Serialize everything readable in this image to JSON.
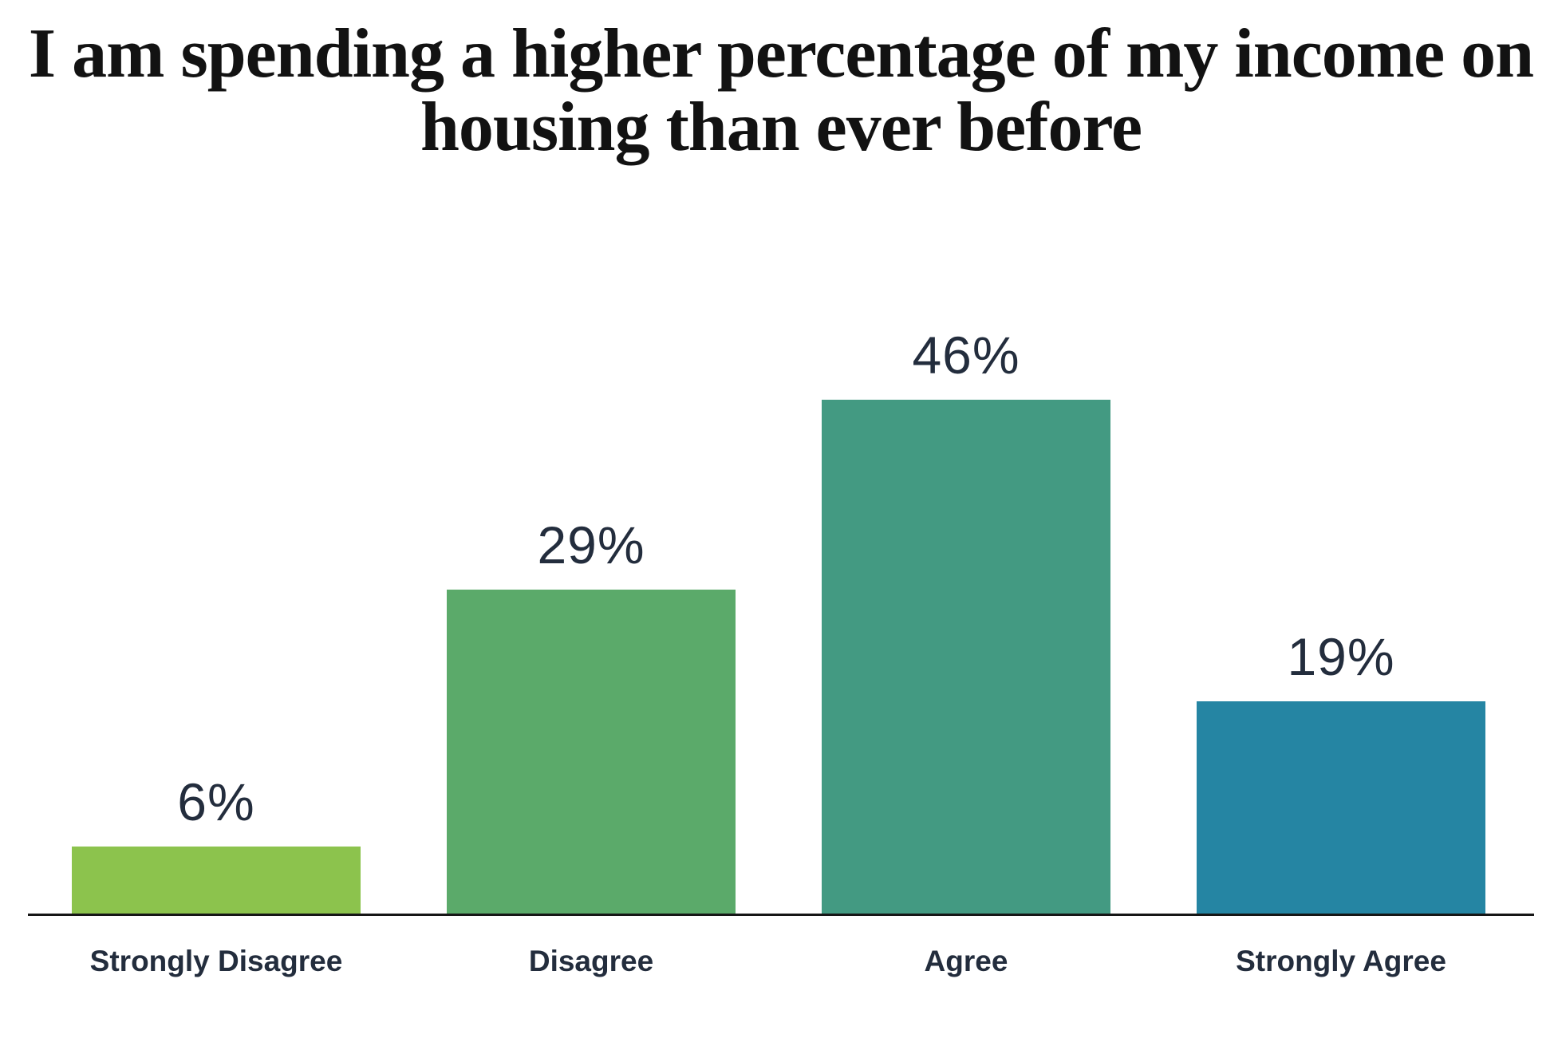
{
  "chart_data": {
    "type": "bar",
    "title": "I am spending a higher percentage of my income on housing than ever before",
    "categories": [
      "Strongly Disagree",
      "Disagree",
      "Agree",
      "Strongly Agree"
    ],
    "values": [
      6,
      29,
      46,
      19
    ],
    "value_labels": [
      "6%",
      "29%",
      "46%",
      "19%"
    ],
    "colors": [
      "#8CC34D",
      "#5BAA6A",
      "#439A82",
      "#2585A3"
    ],
    "xlabel": "",
    "ylabel": "",
    "ylim": [
      0,
      50
    ],
    "grid": false,
    "legend": false,
    "background_color": "#FFFFFF",
    "title_color": "#121212",
    "label_color": "#232D3D",
    "axis_line_color": "#161616"
  }
}
